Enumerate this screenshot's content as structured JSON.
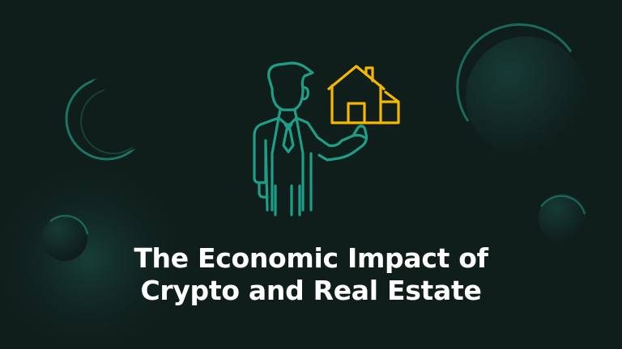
{
  "colors": {
    "background": "#0f1d1b",
    "accent_teal": "#1f9e87",
    "accent_gold": "#f5b800",
    "text": "#ffffff"
  },
  "illustration": {
    "person_icon": "businessman-presenting-icon",
    "house_icon": "house-icon"
  },
  "title": {
    "line1": "The Economic Impact of",
    "line2": "Crypto and Real Estate"
  }
}
